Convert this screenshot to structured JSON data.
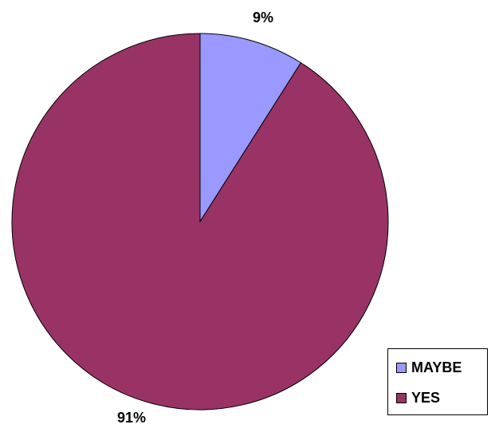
{
  "chart_data": {
    "type": "pie",
    "title": "",
    "slices": [
      {
        "label": "MAYBE",
        "value": 9,
        "display": "9%",
        "color": "#9999ff"
      },
      {
        "label": "YES",
        "value": 91,
        "display": "91%",
        "color": "#993366"
      }
    ],
    "start_angle_deg": 0,
    "direction": "clockwise",
    "legend": {
      "placement": "bottom-right",
      "entries": [
        "MAYBE",
        "YES"
      ]
    }
  }
}
